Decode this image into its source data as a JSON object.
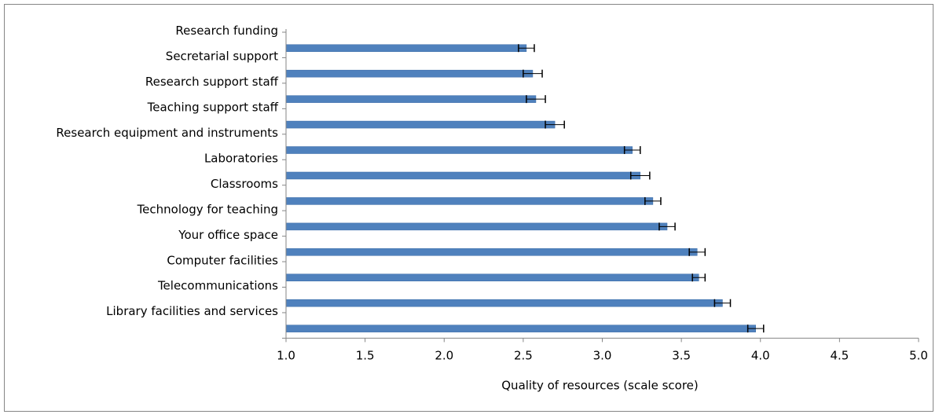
{
  "chart_data": {
    "type": "bar",
    "orientation": "horizontal",
    "categories": [
      "Research funding",
      "Secretarial support",
      "Research support staff",
      "Teaching support staff",
      "Research equipment and instruments",
      "Laboratories",
      "Classrooms",
      "Technology for teaching",
      "Your office space",
      "Computer facilities",
      "Telecommunications",
      "Library facilities and services"
    ],
    "values": [
      2.52,
      2.56,
      2.58,
      2.7,
      3.19,
      3.24,
      3.32,
      3.41,
      3.6,
      3.61,
      3.76,
      3.97
    ],
    "error": [
      0.05,
      0.06,
      0.06,
      0.06,
      0.05,
      0.06,
      0.05,
      0.05,
      0.05,
      0.04,
      0.05,
      0.05
    ],
    "xlabel": "Quality of resources (scale score)",
    "ylabel": "",
    "title": "",
    "xlim": [
      1.0,
      5.0
    ],
    "xticks": [
      "1.0",
      "1.5",
      "2.0",
      "2.5",
      "3.0",
      "3.5",
      "4.0",
      "4.5",
      "5.0"
    ],
    "grid": false,
    "legend": "none",
    "colors": {
      "bar": "#4f81bd",
      "bar_edge": "#3a6aa6",
      "axis": "#868686",
      "error_bar": "#000000"
    }
  }
}
